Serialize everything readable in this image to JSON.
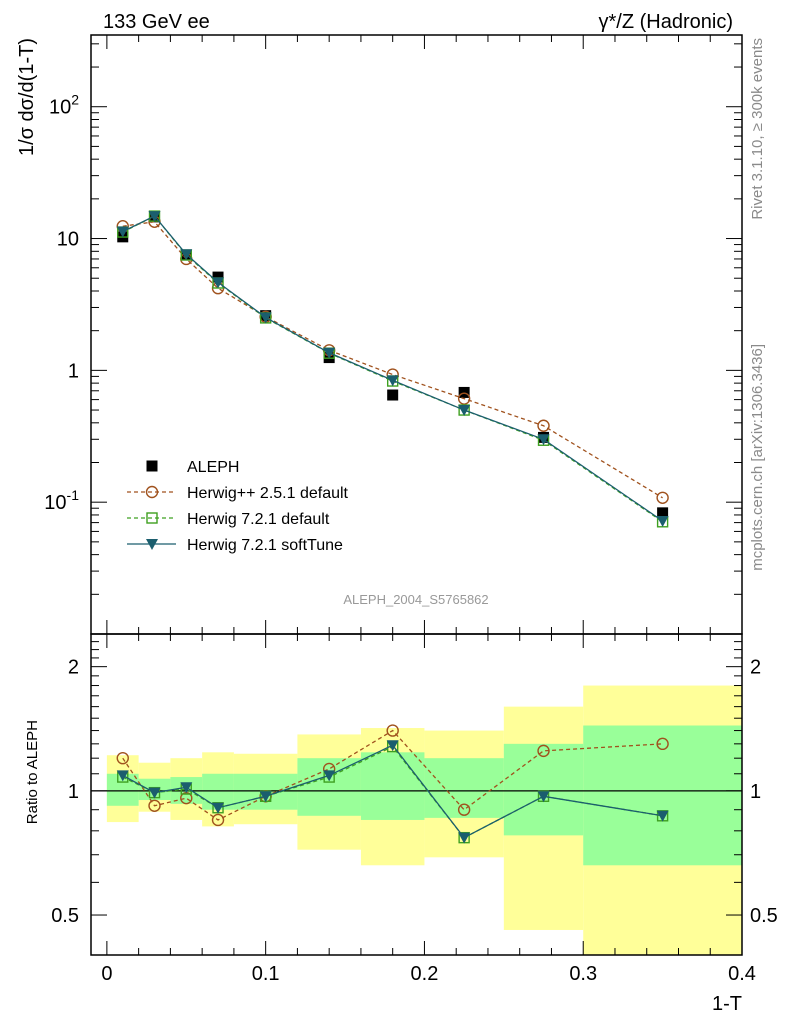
{
  "header": {
    "title_left": "133 GeV ee",
    "title_right": "γ*/Z (Hadronic)"
  },
  "side_labels": {
    "rivet": "Rivet 3.1.10, ≥ 300k events",
    "mcplots": "mcplots.cern.ch [arXiv:1306.3436]"
  },
  "watermark": "ALEPH_2004_S5765862",
  "colors": {
    "data": "#000000",
    "herwigpp": "#a0521e",
    "herwig_default": "#3ea020",
    "herwig_softtune": "#1b5e6e",
    "band_yellow": "#ffff99",
    "band_green": "#99ff99"
  },
  "chart_data": [
    {
      "type": "scatter",
      "ylabel": "1/σ  dσ/d(1-T)",
      "yscale": "log",
      "ylim": [
        0.01,
        350
      ],
      "xlim": [
        -0.01,
        0.4
      ],
      "y_tick_labels": [
        "10^{-1}",
        "1",
        "10",
        "10^{2}"
      ],
      "legend_position": "middle-left",
      "x": [
        0.01,
        0.03,
        0.05,
        0.07,
        0.1,
        0.14,
        0.18,
        0.225,
        0.275,
        0.35
      ],
      "x_bin_edges": [
        0,
        0.02,
        0.04,
        0.06,
        0.08,
        0.12,
        0.16,
        0.2,
        0.25,
        0.3,
        0.4
      ],
      "series": [
        {
          "name": "ALEPH",
          "style": "marker",
          "values": [
            10.3,
            14.6,
            7.5,
            5.1,
            2.6,
            1.25,
            0.65,
            0.68,
            0.31,
            0.083
          ]
        },
        {
          "name": "Herwig++ 2.5.1 default",
          "style": "dashed",
          "values": [
            12.4,
            13.4,
            7.0,
            4.2,
            2.55,
            1.42,
            0.93,
            0.61,
            0.38,
            0.108
          ]
        },
        {
          "name": "Herwig 7.2.1 default",
          "style": "dashed",
          "values": [
            11.2,
            14.8,
            7.5,
            4.6,
            2.5,
            1.35,
            0.83,
            0.5,
            0.295,
            0.071
          ]
        },
        {
          "name": "Herwig 7.2.1 softTune",
          "style": "solid",
          "values": [
            11.3,
            14.8,
            7.6,
            4.65,
            2.52,
            1.36,
            0.84,
            0.5,
            0.3,
            0.072
          ]
        }
      ]
    },
    {
      "type": "line",
      "ylabel": "Ratio to ALEPH",
      "xlabel": "1-T",
      "yscale": "log",
      "ylim": [
        0.4,
        2.4
      ],
      "xlim": [
        -0.01,
        0.4
      ],
      "y_tick_labels": [
        "0.5",
        "1",
        "2"
      ],
      "x_tick_labels": [
        "0",
        "0.1",
        "0.2",
        "0.3",
        "0.4"
      ],
      "x": [
        0.01,
        0.03,
        0.05,
        0.07,
        0.1,
        0.14,
        0.18,
        0.225,
        0.275,
        0.35
      ],
      "bands": {
        "yellow_low": [
          0.84,
          0.89,
          0.85,
          0.82,
          0.83,
          0.72,
          0.66,
          0.69,
          0.46,
          0.3
        ],
        "yellow_high": [
          1.22,
          1.17,
          1.2,
          1.24,
          1.23,
          1.37,
          1.42,
          1.4,
          1.6,
          1.8
        ],
        "green_low": [
          0.92,
          0.95,
          0.93,
          0.9,
          0.9,
          0.87,
          0.85,
          0.86,
          0.78,
          0.66
        ],
        "green_high": [
          1.1,
          1.07,
          1.08,
          1.1,
          1.1,
          1.2,
          1.24,
          1.2,
          1.3,
          1.44
        ]
      },
      "series": [
        {
          "name": "Herwig++ 2.5.1 default",
          "values": [
            1.2,
            0.92,
            0.96,
            0.85,
            0.97,
            1.13,
            1.4,
            0.9,
            1.25,
            1.3
          ]
        },
        {
          "name": "Herwig 7.2.1 default",
          "values": [
            1.08,
            0.99,
            1.01,
            0.91,
            0.97,
            1.08,
            1.28,
            0.77,
            0.97,
            0.87
          ]
        },
        {
          "name": "Herwig 7.2.1 softTune",
          "values": [
            1.09,
            0.99,
            1.02,
            0.91,
            0.97,
            1.09,
            1.29,
            0.77,
            0.97,
            0.87
          ]
        }
      ]
    }
  ]
}
